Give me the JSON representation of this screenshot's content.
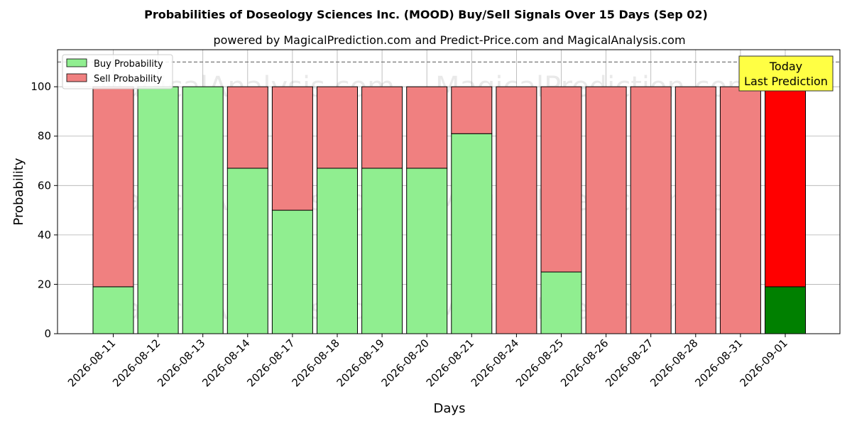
{
  "chart_data": {
    "type": "bar",
    "title": "Probabilities of Doseology Sciences Inc. (MOOD) Buy/Sell Signals Over 15 Days (Sep 02)",
    "subtitle": "powered by MagicalPrediction.com and Predict-Price.com and MagicalAnalysis.com",
    "xlabel": "Days",
    "ylabel": "Probability",
    "ylim": [
      0,
      115
    ],
    "yticks": [
      0,
      20,
      40,
      60,
      80,
      100
    ],
    "reference_line": 110,
    "grid": true,
    "stacked": true,
    "legend_position": "top-left",
    "categories": [
      "2026-08-11",
      "2026-08-12",
      "2026-08-13",
      "2026-08-14",
      "2026-08-17",
      "2026-08-18",
      "2026-08-19",
      "2026-08-20",
      "2026-08-21",
      "2026-08-24",
      "2026-08-25",
      "2026-08-26",
      "2026-08-27",
      "2026-08-28",
      "2026-08-31",
      "2026-09-01"
    ],
    "series": [
      {
        "name": "Buy Probability",
        "color": "#90ee90",
        "highlight_color": "#008000",
        "values": [
          19,
          100,
          100,
          67,
          50,
          67,
          67,
          67,
          81,
          0,
          25,
          0,
          0,
          0,
          0,
          19
        ]
      },
      {
        "name": "Sell Probability",
        "color": "#f08080",
        "highlight_color": "#ff0000",
        "values": [
          81,
          0,
          0,
          33,
          50,
          33,
          33,
          33,
          19,
          100,
          75,
          100,
          100,
          100,
          100,
          81
        ]
      }
    ],
    "highlight_index": 15,
    "annotation": {
      "lines": [
        "Today",
        "Last Prediction"
      ],
      "bg_color": "#ffff44"
    },
    "watermarks": [
      "MagicalAnalysis.com",
      "MagicalPrediction.com"
    ]
  }
}
